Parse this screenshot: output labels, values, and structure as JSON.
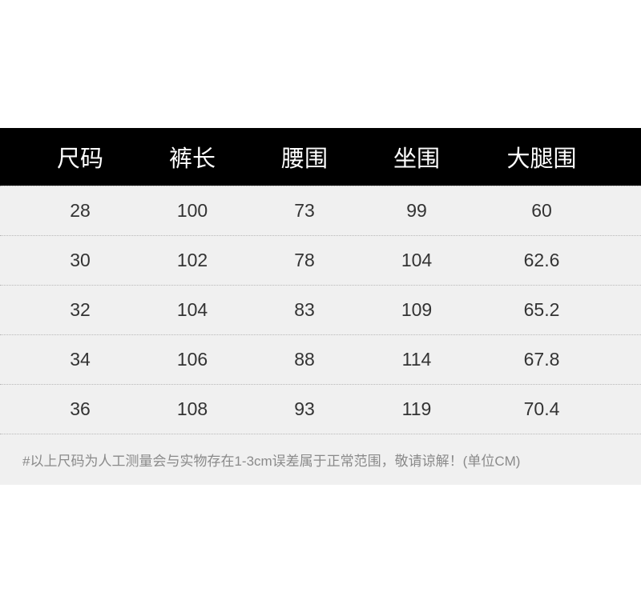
{
  "table": {
    "headers": [
      "尺码",
      "裤长",
      "腰围",
      "坐围",
      "大腿围"
    ],
    "rows": [
      [
        "28",
        "100",
        "73",
        "99",
        "60"
      ],
      [
        "30",
        "102",
        "78",
        "104",
        "62.6"
      ],
      [
        "32",
        "104",
        "83",
        "109",
        "65.2"
      ],
      [
        "34",
        "106",
        "88",
        "114",
        "67.8"
      ],
      [
        "36",
        "108",
        "93",
        "119",
        "70.4"
      ]
    ],
    "note": "#以上尺码为人工测量会与实物存在1-3cm误差属于正常范围，敬请谅解！(单位CM)"
  },
  "colors": {
    "header_bg": "#000000",
    "row_bg": "#f0f0f0",
    "note_text": "#8a8a8a"
  }
}
